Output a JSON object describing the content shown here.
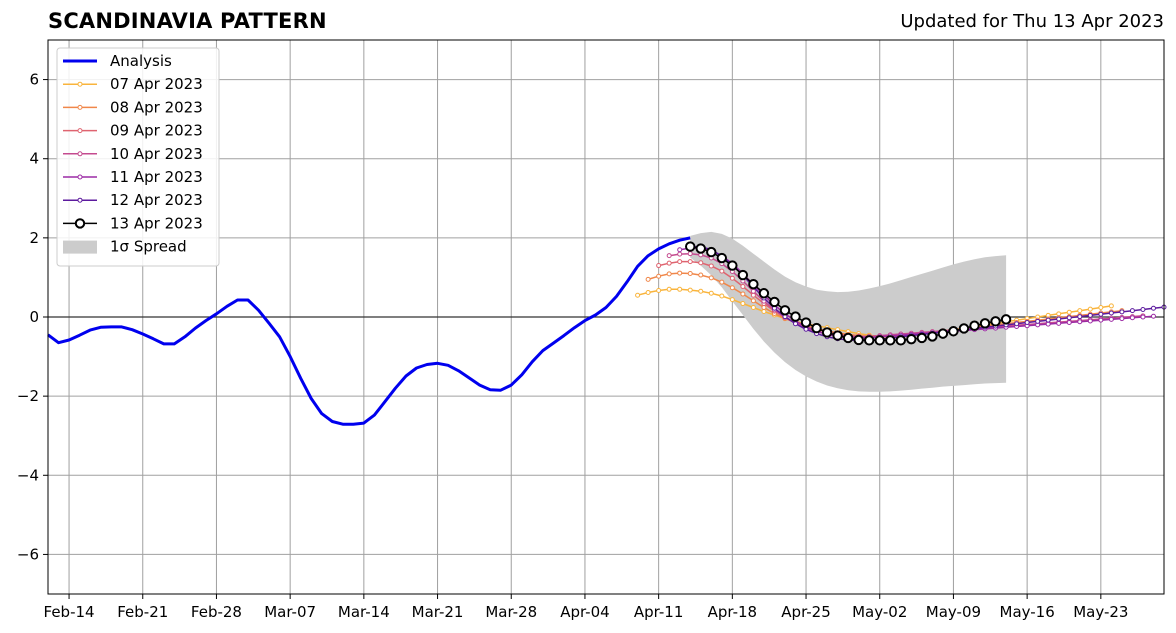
{
  "chart_data": {
    "type": "line",
    "title": "SCANDINAVIA PATTERN",
    "subtitle": "Updated for Thu 13 Apr 2023",
    "x_start": "2023-02-11",
    "xlim_days": [
      0,
      106
    ],
    "ylim": [
      -7,
      7
    ],
    "grid": true,
    "legend_position": "top-left",
    "x_ticks": [
      {
        "day": 2,
        "label": "Feb-14"
      },
      {
        "day": 9,
        "label": "Feb-21"
      },
      {
        "day": 16,
        "label": "Feb-28"
      },
      {
        "day": 23,
        "label": "Mar-07"
      },
      {
        "day": 30,
        "label": "Mar-14"
      },
      {
        "day": 37,
        "label": "Mar-21"
      },
      {
        "day": 44,
        "label": "Mar-28"
      },
      {
        "day": 51,
        "label": "Apr-04"
      },
      {
        "day": 58,
        "label": "Apr-11"
      },
      {
        "day": 65,
        "label": "Apr-18"
      },
      {
        "day": 72,
        "label": "Apr-25"
      },
      {
        "day": 79,
        "label": "May-02"
      },
      {
        "day": 86,
        "label": "May-09"
      },
      {
        "day": 93,
        "label": "May-16"
      },
      {
        "day": 100,
        "label": "May-23"
      }
    ],
    "y_ticks": [
      {
        "value": 6,
        "label": "6"
      },
      {
        "value": 4,
        "label": "4"
      },
      {
        "value": 2,
        "label": "2"
      },
      {
        "value": 0,
        "label": "0"
      },
      {
        "value": -2,
        "label": "−2"
      },
      {
        "value": -4,
        "label": "−4"
      },
      {
        "value": -6,
        "label": "−6"
      }
    ],
    "analysis": {
      "name": "Analysis",
      "color": "#0000ee",
      "x": [
        0,
        1,
        2,
        3,
        4,
        5,
        6,
        7,
        8,
        9,
        10,
        11,
        12,
        13,
        14,
        15,
        16,
        17,
        18,
        19,
        20,
        21,
        22,
        23,
        24,
        25,
        26,
        27,
        28,
        29,
        30,
        31,
        32,
        33,
        34,
        35,
        36,
        37,
        38,
        39,
        40,
        41,
        42,
        43,
        44,
        45,
        46,
        47,
        48,
        49,
        50,
        51,
        52,
        53,
        54,
        55,
        56,
        57,
        58,
        59,
        60,
        61
      ],
      "y": [
        -0.45,
        -0.65,
        -0.58,
        -0.46,
        -0.33,
        -0.26,
        -0.25,
        -0.25,
        -0.32,
        -0.43,
        -0.55,
        -0.68,
        -0.68,
        -0.5,
        -0.28,
        -0.09,
        0.08,
        0.27,
        0.43,
        0.43,
        0.17,
        -0.16,
        -0.5,
        -1.0,
        -1.55,
        -2.06,
        -2.44,
        -2.64,
        -2.71,
        -2.71,
        -2.68,
        -2.48,
        -2.14,
        -1.8,
        -1.49,
        -1.29,
        -1.2,
        -1.17,
        -1.22,
        -1.36,
        -1.54,
        -1.72,
        -1.84,
        -1.85,
        -1.72,
        -1.46,
        -1.13,
        -0.85,
        -0.66,
        -0.47,
        -0.27,
        -0.09,
        0.05,
        0.24,
        0.52,
        0.89,
        1.28,
        1.55,
        1.72,
        1.85,
        1.94,
        2.0
      ]
    },
    "forecasts": [
      {
        "name": "07 Apr 2023",
        "color": "#f9b43c",
        "x": [
          56,
          57,
          58,
          59,
          60,
          61,
          62,
          63,
          64,
          65,
          66,
          67,
          68,
          69,
          70,
          71,
          72,
          73,
          74,
          75,
          76,
          77,
          78,
          79,
          80,
          81,
          82,
          83,
          84,
          85,
          86,
          87,
          88,
          89,
          90,
          91,
          92,
          93,
          94,
          95,
          96,
          97,
          98,
          99,
          100,
          101
        ],
        "y": [
          0.55,
          0.62,
          0.67,
          0.7,
          0.7,
          0.68,
          0.65,
          0.6,
          0.53,
          0.44,
          0.34,
          0.24,
          0.14,
          0.05,
          -0.04,
          -0.11,
          -0.17,
          -0.22,
          -0.27,
          -0.32,
          -0.37,
          -0.42,
          -0.46,
          -0.49,
          -0.51,
          -0.5,
          -0.48,
          -0.44,
          -0.4,
          -0.36,
          -0.32,
          -0.28,
          -0.24,
          -0.2,
          -0.16,
          -0.12,
          -0.08,
          -0.04,
          0,
          0.04,
          0.08,
          0.12,
          0.16,
          0.2,
          0.24,
          0.28
        ]
      },
      {
        "name": "08 Apr 2023",
        "color": "#f0874a",
        "x": [
          57,
          58,
          59,
          60,
          61,
          62,
          63,
          64,
          65,
          66,
          67,
          68,
          69,
          70,
          71,
          72,
          73,
          74,
          75,
          76,
          77,
          78,
          79,
          80,
          81,
          82,
          83,
          84,
          85,
          86,
          87,
          88,
          89,
          90,
          91,
          92,
          93,
          94,
          95,
          96,
          97,
          98,
          99,
          100,
          101,
          102
        ],
        "y": [
          0.95,
          1.03,
          1.09,
          1.11,
          1.1,
          1.06,
          0.99,
          0.88,
          0.74,
          0.58,
          0.41,
          0.24,
          0.09,
          -0.04,
          -0.14,
          -0.22,
          -0.29,
          -0.35,
          -0.4,
          -0.44,
          -0.47,
          -0.49,
          -0.5,
          -0.49,
          -0.47,
          -0.44,
          -0.41,
          -0.38,
          -0.35,
          -0.32,
          -0.29,
          -0.26,
          -0.23,
          -0.2,
          -0.17,
          -0.14,
          -0.11,
          -0.08,
          -0.05,
          -0.02,
          0.01,
          0.04,
          0.07,
          0.1,
          0.13,
          0.16
        ]
      },
      {
        "name": "09 Apr 2023",
        "color": "#df6470",
        "x": [
          58,
          59,
          60,
          61,
          62,
          63,
          64,
          65,
          66,
          67,
          68,
          69,
          70,
          71,
          72,
          73,
          74,
          75,
          76,
          77,
          78,
          79,
          80,
          81,
          82,
          83,
          84,
          85,
          86,
          87,
          88,
          89,
          90,
          91,
          92,
          93,
          94,
          95,
          96,
          97,
          98,
          99,
          100,
          101,
          102,
          103
        ],
        "y": [
          1.3,
          1.36,
          1.4,
          1.4,
          1.37,
          1.29,
          1.16,
          0.98,
          0.77,
          0.55,
          0.34,
          0.15,
          -0.01,
          -0.14,
          -0.24,
          -0.32,
          -0.38,
          -0.43,
          -0.47,
          -0.49,
          -0.5,
          -0.49,
          -0.47,
          -0.45,
          -0.43,
          -0.41,
          -0.39,
          -0.37,
          -0.35,
          -0.33,
          -0.31,
          -0.29,
          -0.27,
          -0.25,
          -0.23,
          -0.21,
          -0.19,
          -0.17,
          -0.15,
          -0.13,
          -0.11,
          -0.09,
          -0.07,
          -0.05,
          -0.03,
          -0.01
        ]
      },
      {
        "name": "10 Apr 2023",
        "color": "#c44b8f",
        "x": [
          59,
          60,
          61,
          62,
          63,
          64,
          65,
          66,
          67,
          68,
          69,
          70,
          71,
          72,
          73,
          74,
          75,
          76,
          77,
          78,
          79,
          80,
          81,
          82,
          83,
          84,
          85,
          86,
          87,
          88,
          89,
          90,
          91,
          92,
          93,
          94,
          95,
          96,
          97,
          98,
          99,
          100,
          101,
          102,
          103,
          104
        ],
        "y": [
          1.55,
          1.59,
          1.6,
          1.57,
          1.49,
          1.35,
          1.15,
          0.91,
          0.65,
          0.4,
          0.18,
          -0.01,
          -0.16,
          -0.28,
          -0.37,
          -0.43,
          -0.47,
          -0.49,
          -0.5,
          -0.49,
          -0.47,
          -0.45,
          -0.43,
          -0.41,
          -0.39,
          -0.37,
          -0.35,
          -0.33,
          -0.31,
          -0.29,
          -0.27,
          -0.25,
          -0.23,
          -0.21,
          -0.19,
          -0.17,
          -0.15,
          -0.13,
          -0.11,
          -0.09,
          -0.07,
          -0.05,
          -0.03,
          -0.01,
          0.01,
          0.03
        ]
      },
      {
        "name": "11 Apr 2023",
        "color": "#9c2ba5",
        "x": [
          60,
          61,
          62,
          63,
          64,
          65,
          66,
          67,
          68,
          69,
          70,
          71,
          72,
          73,
          74,
          75,
          76,
          77,
          78,
          79,
          80,
          81,
          82,
          83,
          84,
          85,
          86,
          87,
          88,
          89,
          90,
          91,
          92,
          93,
          94,
          95,
          96,
          97,
          98,
          99,
          100,
          101,
          102,
          103,
          104,
          105
        ],
        "y": [
          1.7,
          1.74,
          1.74,
          1.68,
          1.55,
          1.35,
          1.1,
          0.82,
          0.55,
          0.3,
          0.08,
          -0.1,
          -0.25,
          -0.36,
          -0.44,
          -0.49,
          -0.52,
          -0.53,
          -0.52,
          -0.5,
          -0.48,
          -0.46,
          -0.44,
          -0.42,
          -0.4,
          -0.38,
          -0.36,
          -0.34,
          -0.32,
          -0.3,
          -0.28,
          -0.26,
          -0.24,
          -0.22,
          -0.2,
          -0.18,
          -0.16,
          -0.14,
          -0.12,
          -0.1,
          -0.08,
          -0.06,
          -0.04,
          -0.02,
          0,
          0.02
        ]
      },
      {
        "name": "12 Apr 2023",
        "color": "#5c1a9e",
        "x": [
          61,
          62,
          63,
          64,
          65,
          66,
          67,
          68,
          69,
          70,
          71,
          72,
          73,
          74,
          75,
          76,
          77,
          78,
          79,
          80,
          81,
          82,
          83,
          84,
          85,
          86,
          87,
          88,
          89,
          90,
          91,
          92,
          93,
          94,
          95,
          96,
          97,
          98,
          99,
          100,
          101,
          102,
          103,
          104,
          105,
          106
        ],
        "y": [
          1.78,
          1.78,
          1.7,
          1.54,
          1.32,
          1.05,
          0.76,
          0.48,
          0.22,
          0.01,
          -0.17,
          -0.31,
          -0.42,
          -0.5,
          -0.55,
          -0.58,
          -0.59,
          -0.58,
          -0.56,
          -0.53,
          -0.5,
          -0.47,
          -0.44,
          -0.41,
          -0.38,
          -0.35,
          -0.32,
          -0.29,
          -0.26,
          -0.23,
          -0.2,
          -0.17,
          -0.14,
          -0.11,
          -0.08,
          -0.05,
          -0.02,
          0.01,
          0.04,
          0.07,
          0.1,
          0.13,
          0.16,
          0.19,
          0.22,
          0.25
        ]
      }
    ],
    "latest": {
      "name": "13 Apr 2023",
      "color": "#000000",
      "x": [
        61,
        62,
        63,
        64,
        65,
        66,
        67,
        68,
        69,
        70,
        71,
        72,
        73,
        74,
        75,
        76,
        77,
        78,
        79,
        80,
        81,
        82,
        83,
        84,
        85,
        86,
        87,
        88,
        89,
        90,
        91
      ],
      "y": [
        1.78,
        1.73,
        1.64,
        1.49,
        1.3,
        1.06,
        0.83,
        0.6,
        0.38,
        0.17,
        0.01,
        -0.14,
        -0.28,
        -0.39,
        -0.47,
        -0.53,
        -0.58,
        -0.59,
        -0.59,
        -0.59,
        -0.59,
        -0.56,
        -0.53,
        -0.49,
        -0.42,
        -0.36,
        -0.29,
        -0.22,
        -0.16,
        -0.11,
        -0.06
      ]
    },
    "spread": {
      "name": "1σ Spread",
      "color": "#cccccc",
      "x": [
        61,
        62,
        63,
        64,
        65,
        66,
        67,
        68,
        69,
        70,
        71,
        72,
        73,
        74,
        75,
        76,
        77,
        78,
        79,
        80,
        81,
        82,
        83,
        84,
        85,
        86,
        87,
        88,
        89,
        90,
        91
      ],
      "upper": [
        2.05,
        2.12,
        2.15,
        2.1,
        1.98,
        1.8,
        1.6,
        1.4,
        1.2,
        1.02,
        0.88,
        0.77,
        0.69,
        0.65,
        0.63,
        0.64,
        0.67,
        0.72,
        0.78,
        0.85,
        0.93,
        1.01,
        1.09,
        1.17,
        1.25,
        1.33,
        1.4,
        1.46,
        1.51,
        1.54,
        1.56
      ],
      "lower": [
        1.5,
        1.3,
        1.05,
        0.75,
        0.4,
        0.05,
        -0.3,
        -0.62,
        -0.9,
        -1.14,
        -1.34,
        -1.5,
        -1.63,
        -1.73,
        -1.8,
        -1.85,
        -1.88,
        -1.89,
        -1.89,
        -1.88,
        -1.86,
        -1.84,
        -1.81,
        -1.79,
        -1.76,
        -1.74,
        -1.72,
        -1.7,
        -1.68,
        -1.67,
        -1.66
      ]
    }
  }
}
